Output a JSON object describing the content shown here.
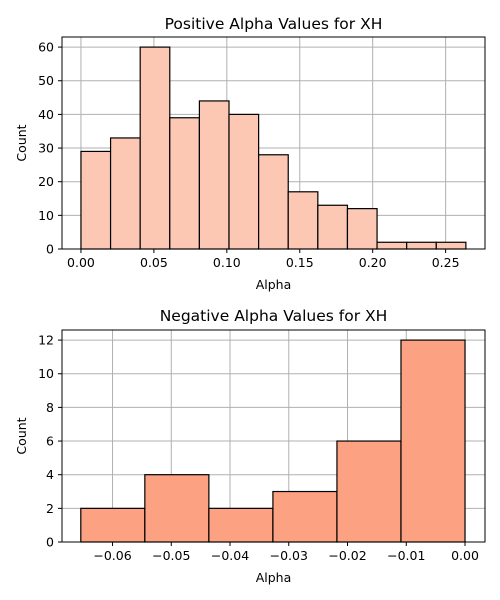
{
  "chart_data": [
    {
      "type": "bar",
      "title": "Positive Alpha Values for XH",
      "xlabel": "Alpha",
      "ylabel": "Count",
      "xlim": [
        -0.013,
        0.277
      ],
      "ylim": [
        0,
        63
      ],
      "xticks": [
        0.0,
        0.05,
        0.1,
        0.15,
        0.2,
        0.25
      ],
      "xtick_labels": [
        "0.00",
        "0.05",
        "0.10",
        "0.15",
        "0.20",
        "0.25"
      ],
      "yticks": [
        0,
        10,
        20,
        30,
        40,
        50,
        60
      ],
      "ytick_labels": [
        "0",
        "10",
        "20",
        "30",
        "40",
        "50",
        "60"
      ],
      "bin_edges": [
        0.0,
        0.0203,
        0.0406,
        0.0609,
        0.0812,
        0.1015,
        0.1218,
        0.1421,
        0.1624,
        0.1827,
        0.203,
        0.2233,
        0.2436,
        0.2639
      ],
      "values": [
        29,
        33,
        60,
        39,
        44,
        40,
        28,
        17,
        13,
        12,
        2,
        2,
        2
      ],
      "bar_color": "#fcc8b4",
      "edge_color": "#000000",
      "grid": true
    },
    {
      "type": "bar",
      "title": "Negative Alpha Values for XH",
      "xlabel": "Alpha",
      "ylabel": "Count",
      "xlim": [
        -0.0686,
        0.0034
      ],
      "ylim": [
        0,
        12.6
      ],
      "xticks": [
        -0.06,
        -0.05,
        -0.04,
        -0.03,
        -0.02,
        -0.01,
        0.0
      ],
      "xtick_labels": [
        "−0.06",
        "−0.05",
        "−0.04",
        "−0.03",
        "−0.02",
        "−0.01",
        "0.00"
      ],
      "yticks": [
        0,
        2,
        4,
        6,
        8,
        10,
        12
      ],
      "ytick_labels": [
        "0",
        "2",
        "4",
        "6",
        "8",
        "10",
        "12"
      ],
      "bin_edges": [
        -0.0654,
        -0.0545,
        -0.0436,
        -0.0327,
        -0.0218,
        -0.0109,
        0.0
      ],
      "values": [
        2,
        4,
        2,
        3,
        6,
        12
      ],
      "bar_color": "#fca282",
      "edge_color": "#000000",
      "grid": true
    }
  ]
}
